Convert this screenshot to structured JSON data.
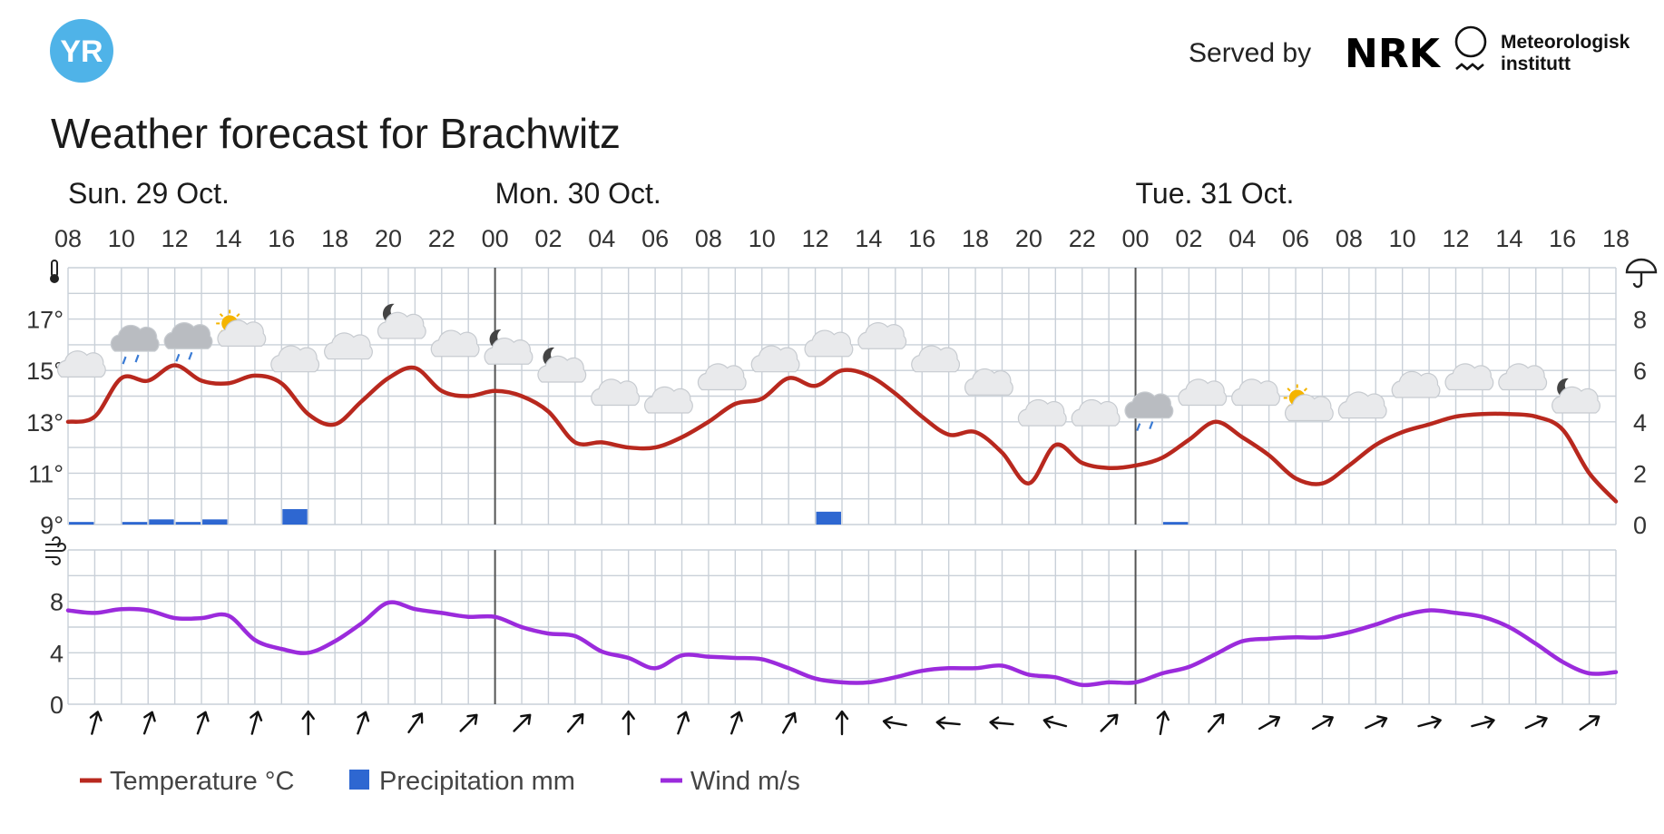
{
  "header": {
    "logo_text": "YR",
    "served_by": "Served by",
    "nrk_logo": "NRK",
    "met_line1": "Meteorologisk",
    "met_line2": "institutt",
    "title": "Weather forecast for Brachwitz"
  },
  "colors": {
    "logo_blue": "#4FB3E8",
    "temperature": "#B8281E",
    "precipitation": "#2E67D1",
    "wind": "#9B2BDC",
    "grid": "#C9D0D8",
    "day_divider": "#555555"
  },
  "chart_data": [
    {
      "type": "line",
      "title": "",
      "days": [
        {
          "label": "Sun. 29 Oct.",
          "start_index": 0
        },
        {
          "label": "Mon. 30 Oct.",
          "start_index": 16
        },
        {
          "label": "Tue. 31 Oct.",
          "start_index": 40
        }
      ],
      "hour_labels": [
        "08",
        "10",
        "12",
        "14",
        "16",
        "18",
        "20",
        "22",
        "00",
        "02",
        "04",
        "06",
        "08",
        "10",
        "12",
        "14",
        "16",
        "18",
        "20",
        "22",
        "00",
        "02",
        "04",
        "06",
        "08",
        "10",
        "12",
        "14",
        "16",
        "18"
      ],
      "y_left_ticks": [
        "17°",
        "15°",
        "13°",
        "11°",
        "9°"
      ],
      "y_left_tick_values": [
        17,
        15,
        13,
        11,
        9
      ],
      "y_right_ticks": [
        "8",
        "6",
        "4",
        "2",
        "0"
      ],
      "y_right_tick_values": [
        8,
        6,
        4,
        2,
        0
      ],
      "ylim_temperature": [
        9,
        19
      ],
      "ylim_precipitation": [
        0,
        10
      ],
      "grid": true,
      "series": [
        {
          "name": "Temperature °C",
          "unit": "°C",
          "x_hours_from_start": [
            0,
            1,
            2,
            3,
            4,
            5,
            6,
            7,
            8,
            9,
            10,
            11,
            12,
            13,
            14,
            15,
            16,
            17,
            18,
            19,
            20,
            21,
            22,
            23,
            24,
            25,
            26,
            27,
            28,
            29,
            30,
            31,
            32,
            33,
            34,
            35,
            36,
            37,
            38,
            39,
            40,
            41,
            42,
            43,
            44,
            45,
            46,
            47,
            48,
            49,
            50,
            51,
            52,
            53,
            54,
            55,
            56,
            57,
            58
          ],
          "values": [
            13.0,
            13.2,
            14.7,
            14.6,
            15.2,
            14.6,
            14.5,
            14.8,
            14.5,
            13.3,
            12.9,
            13.8,
            14.7,
            15.1,
            14.2,
            14.0,
            14.2,
            14.0,
            13.4,
            12.2,
            12.2,
            12.0,
            12.0,
            12.4,
            13.0,
            13.7,
            13.9,
            14.7,
            14.4,
            15.0,
            14.8,
            14.1,
            13.2,
            12.5,
            12.6,
            11.8,
            10.6,
            12.1,
            11.4,
            11.2,
            11.3,
            11.6,
            12.3,
            13.0,
            12.4,
            11.7,
            10.8,
            10.6,
            11.3,
            12.1,
            12.6,
            12.9,
            13.2,
            13.3,
            13.3,
            13.2,
            12.7,
            11.0,
            9.9
          ]
        },
        {
          "name": "Precipitation mm",
          "unit": "mm",
          "bars": [
            {
              "hour": 0,
              "value": 0.1
            },
            {
              "hour": 2,
              "value": 0.1
            },
            {
              "hour": 3,
              "value": 0.2
            },
            {
              "hour": 4,
              "value": 0.1
            },
            {
              "hour": 5,
              "value": 0.2
            },
            {
              "hour": 8,
              "value": 0.6
            },
            {
              "hour": 28,
              "value": 0.5
            },
            {
              "hour": 41,
              "value": 0.1
            }
          ]
        }
      ],
      "weather_icons": [
        {
          "hour": 0.5,
          "temp": 15.1,
          "icon": "cloud"
        },
        {
          "hour": 2.5,
          "temp": 16.1,
          "icon": "rain-cloud"
        },
        {
          "hour": 4.5,
          "temp": 16.2,
          "icon": "rain-cloud"
        },
        {
          "hour": 6.5,
          "temp": 16.3,
          "icon": "partly-sunny"
        },
        {
          "hour": 8.5,
          "temp": 15.3,
          "icon": "cloud"
        },
        {
          "hour": 10.5,
          "temp": 15.8,
          "icon": "cloud"
        },
        {
          "hour": 12.5,
          "temp": 16.6,
          "icon": "partly-cloudy-night"
        },
        {
          "hour": 14.5,
          "temp": 15.9,
          "icon": "cloud"
        },
        {
          "hour": 16.5,
          "temp": 15.6,
          "icon": "partly-cloudy-night"
        },
        {
          "hour": 18.5,
          "temp": 14.9,
          "icon": "partly-cloudy-night"
        },
        {
          "hour": 20.5,
          "temp": 14.0,
          "icon": "cloud"
        },
        {
          "hour": 22.5,
          "temp": 13.7,
          "icon": "cloud"
        },
        {
          "hour": 24.5,
          "temp": 14.6,
          "icon": "cloud"
        },
        {
          "hour": 26.5,
          "temp": 15.3,
          "icon": "cloud"
        },
        {
          "hour": 28.5,
          "temp": 15.9,
          "icon": "cloud"
        },
        {
          "hour": 30.5,
          "temp": 16.2,
          "icon": "cloud"
        },
        {
          "hour": 32.5,
          "temp": 15.3,
          "icon": "cloud"
        },
        {
          "hour": 34.5,
          "temp": 14.4,
          "icon": "cloud"
        },
        {
          "hour": 36.5,
          "temp": 13.2,
          "icon": "cloud"
        },
        {
          "hour": 38.5,
          "temp": 13.2,
          "icon": "cloud"
        },
        {
          "hour": 40.5,
          "temp": 13.5,
          "icon": "rain-cloud"
        },
        {
          "hour": 42.5,
          "temp": 14.0,
          "icon": "cloud"
        },
        {
          "hour": 44.5,
          "temp": 14.0,
          "icon": "cloud"
        },
        {
          "hour": 46.5,
          "temp": 13.4,
          "icon": "partly-sunny"
        },
        {
          "hour": 48.5,
          "temp": 13.5,
          "icon": "cloud"
        },
        {
          "hour": 50.5,
          "temp": 14.3,
          "icon": "cloud"
        },
        {
          "hour": 52.5,
          "temp": 14.6,
          "icon": "cloud"
        },
        {
          "hour": 54.5,
          "temp": 14.6,
          "icon": "cloud"
        },
        {
          "hour": 56.5,
          "temp": 13.7,
          "icon": "partly-cloudy-night"
        }
      ]
    },
    {
      "type": "line",
      "title": "",
      "y_ticks": [
        "8",
        "4",
        "0"
      ],
      "y_tick_values": [
        8,
        4,
        0
      ],
      "ylim": [
        0,
        12
      ],
      "grid": true,
      "series": [
        {
          "name": "Wind m/s",
          "unit": "m/s",
          "x_hours_from_start": [
            0,
            1,
            2,
            3,
            4,
            5,
            6,
            7,
            8,
            9,
            10,
            11,
            12,
            13,
            14,
            15,
            16,
            17,
            18,
            19,
            20,
            21,
            22,
            23,
            24,
            25,
            26,
            27,
            28,
            29,
            30,
            31,
            32,
            33,
            34,
            35,
            36,
            37,
            38,
            39,
            40,
            41,
            42,
            43,
            44,
            45,
            46,
            47,
            48,
            49,
            50,
            51,
            52,
            53,
            54,
            55,
            56,
            57,
            58
          ],
          "values": [
            7.3,
            7.1,
            7.4,
            7.3,
            6.7,
            6.7,
            6.9,
            5.0,
            4.3,
            4.0,
            4.9,
            6.3,
            7.9,
            7.4,
            7.1,
            6.8,
            6.8,
            6.0,
            5.5,
            5.3,
            4.1,
            3.6,
            2.8,
            3.8,
            3.7,
            3.6,
            3.5,
            2.8,
            2.0,
            1.7,
            1.7,
            2.1,
            2.6,
            2.8,
            2.8,
            3.0,
            2.3,
            2.1,
            1.5,
            1.7,
            1.7,
            2.4,
            2.9,
            3.9,
            4.9,
            5.1,
            5.2,
            5.2,
            5.6,
            6.2,
            6.9,
            7.3,
            7.1,
            6.8,
            6.0,
            4.7,
            3.3,
            2.4,
            2.5
          ]
        }
      ],
      "wind_arrows": [
        {
          "hour": 1,
          "direction_deg": 195
        },
        {
          "hour": 3,
          "direction_deg": 200
        },
        {
          "hour": 5,
          "direction_deg": 200
        },
        {
          "hour": 7,
          "direction_deg": 195
        },
        {
          "hour": 9,
          "direction_deg": 180
        },
        {
          "hour": 11,
          "direction_deg": 200
        },
        {
          "hour": 13,
          "direction_deg": 215
        },
        {
          "hour": 15,
          "direction_deg": 225
        },
        {
          "hour": 17,
          "direction_deg": 225
        },
        {
          "hour": 19,
          "direction_deg": 220
        },
        {
          "hour": 21,
          "direction_deg": 180
        },
        {
          "hour": 23,
          "direction_deg": 200
        },
        {
          "hour": 25,
          "direction_deg": 200
        },
        {
          "hour": 27,
          "direction_deg": 210
        },
        {
          "hour": 29,
          "direction_deg": 180
        },
        {
          "hour": 31,
          "direction_deg": 100
        },
        {
          "hour": 33,
          "direction_deg": 95
        },
        {
          "hour": 35,
          "direction_deg": 95
        },
        {
          "hour": 37,
          "direction_deg": 105
        },
        {
          "hour": 39,
          "direction_deg": 225
        },
        {
          "hour": 41,
          "direction_deg": 190
        },
        {
          "hour": 43,
          "direction_deg": 220
        },
        {
          "hour": 45,
          "direction_deg": 240
        },
        {
          "hour": 47,
          "direction_deg": 240
        },
        {
          "hour": 49,
          "direction_deg": 245
        },
        {
          "hour": 51,
          "direction_deg": 255
        },
        {
          "hour": 53,
          "direction_deg": 255
        },
        {
          "hour": 55,
          "direction_deg": 245
        },
        {
          "hour": 57,
          "direction_deg": 235
        }
      ]
    }
  ],
  "legend": [
    {
      "label": "Temperature °C",
      "key": "temperature",
      "swatch": "line"
    },
    {
      "label": "Precipitation mm",
      "key": "precipitation",
      "swatch": "square"
    },
    {
      "label": "Wind m/s",
      "key": "wind",
      "swatch": "line"
    }
  ]
}
